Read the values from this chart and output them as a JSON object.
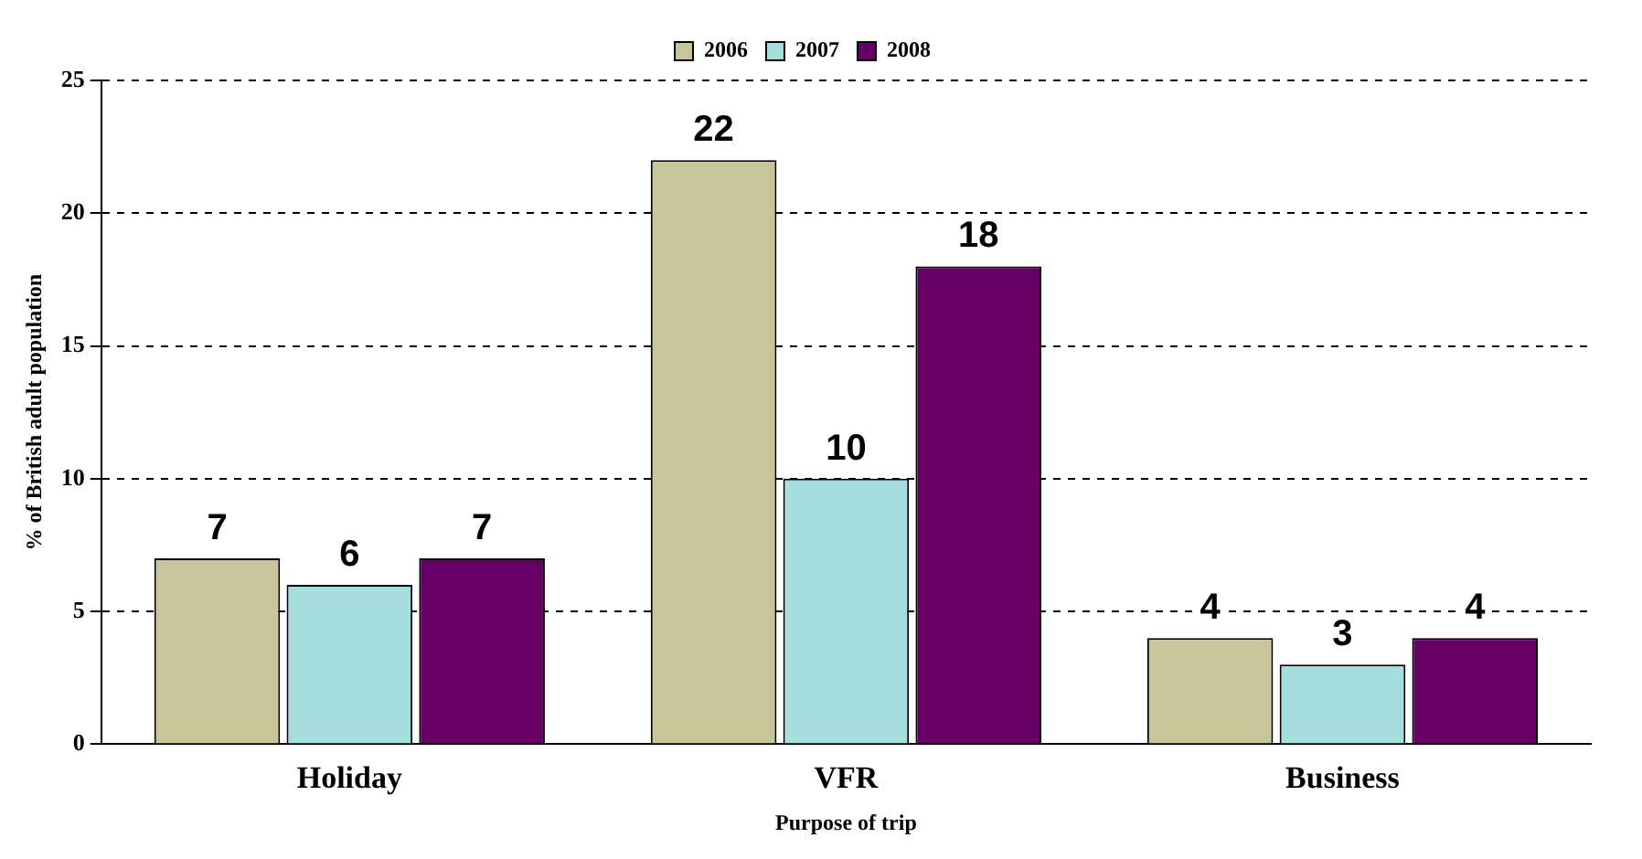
{
  "chart_data": {
    "type": "bar",
    "xlabel": "Purpose of trip",
    "ylabel": "% of British adult population",
    "categories": [
      "Holiday",
      "VFR",
      "Business"
    ],
    "series": [
      {
        "name": "2006",
        "color": "#c9c59a",
        "values": [
          7,
          22,
          4
        ]
      },
      {
        "name": "2007",
        "color": "#a6dede",
        "values": [
          6,
          10,
          3
        ]
      },
      {
        "name": "2008",
        "color": "#660066",
        "values": [
          7,
          18,
          4
        ]
      }
    ],
    "ylim": [
      0,
      25
    ],
    "yticks": [
      0,
      5,
      10,
      15,
      20,
      25
    ],
    "grid": "y",
    "legend": "top",
    "data_labels": true
  }
}
